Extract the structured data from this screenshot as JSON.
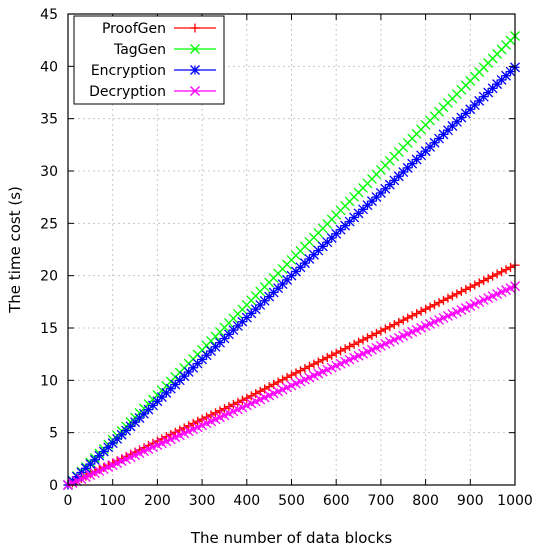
{
  "chart_data": {
    "type": "line",
    "xlabel": "The number of data blocks",
    "ylabel": "The time cost (s)",
    "xlim": [
      0,
      1000
    ],
    "ylim": [
      0,
      45
    ],
    "x_ticks": [
      "0",
      "100",
      "200",
      "300",
      "400",
      "500",
      "600",
      "700",
      "800",
      "900",
      "1000"
    ],
    "y_ticks": [
      "0",
      "5",
      "10",
      "15",
      "20",
      "25",
      "30",
      "35",
      "40",
      "45"
    ],
    "grid": true,
    "legend_position": "top-left",
    "x": [
      0,
      100,
      200,
      300,
      400,
      500,
      600,
      700,
      800,
      900,
      1000
    ],
    "series": [
      {
        "name": "ProofGen",
        "color": "#ff0000",
        "marker": "plus",
        "values": [
          0,
          2.1,
          4.2,
          6.3,
          8.3,
          10.5,
          12.6,
          14.7,
          16.8,
          18.9,
          21.0
        ]
      },
      {
        "name": "TagGen",
        "color": "#00ff00",
        "marker": "x",
        "values": [
          0,
          4.3,
          8.6,
          12.9,
          17.2,
          21.5,
          25.8,
          30.1,
          34.4,
          38.6,
          42.9
        ]
      },
      {
        "name": "Encryption",
        "color": "#0000ff",
        "marker": "star",
        "values": [
          0,
          4.0,
          8.0,
          12.0,
          16.0,
          20.0,
          24.0,
          27.9,
          31.9,
          35.9,
          39.9
        ]
      },
      {
        "name": "Decryption",
        "color": "#ff00ff",
        "marker": "x",
        "values": [
          0,
          1.9,
          3.8,
          5.7,
          7.6,
          9.5,
          11.4,
          13.3,
          15.2,
          17.1,
          19.0
        ]
      }
    ]
  }
}
